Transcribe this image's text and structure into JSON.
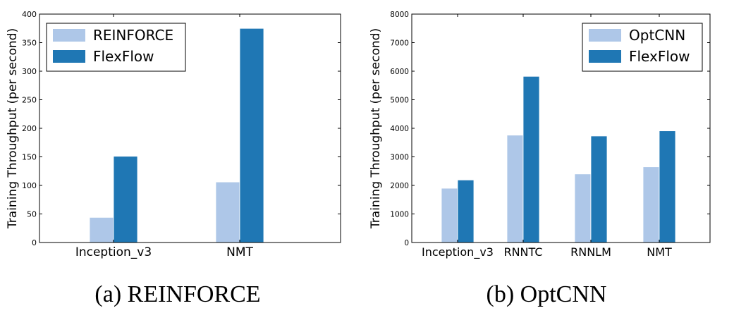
{
  "colors": {
    "light": "#aec7e8",
    "dark": "#1f77b4"
  },
  "chart_data": [
    {
      "type": "bar",
      "caption": "(a) REINFORCE",
      "ylabel": "Training Throughput (per second)",
      "categories": [
        "Inception_v3",
        "NMT"
      ],
      "series": [
        {
          "name": "REINFORCE",
          "values": [
            44,
            106
          ]
        },
        {
          "name": "FlexFlow",
          "values": [
            151,
            375
          ]
        }
      ],
      "ylim": [
        0,
        400
      ],
      "yticks": [
        0,
        50,
        100,
        150,
        200,
        250,
        300,
        350,
        400
      ],
      "legend": "top-left"
    },
    {
      "type": "bar",
      "caption": "(b) OptCNN",
      "ylabel": "Training Throughput (per second)",
      "categories": [
        "Inception_v3",
        "RNNTC",
        "RNNLM",
        "NMT"
      ],
      "series": [
        {
          "name": "OptCNN",
          "values": [
            1900,
            3760,
            2400,
            2650
          ]
        },
        {
          "name": "FlexFlow",
          "values": [
            2190,
            5820,
            3730,
            3910
          ]
        }
      ],
      "ylim": [
        0,
        8000
      ],
      "yticks": [
        0,
        1000,
        2000,
        3000,
        4000,
        5000,
        6000,
        7000,
        8000
      ],
      "legend": "top-right"
    }
  ]
}
